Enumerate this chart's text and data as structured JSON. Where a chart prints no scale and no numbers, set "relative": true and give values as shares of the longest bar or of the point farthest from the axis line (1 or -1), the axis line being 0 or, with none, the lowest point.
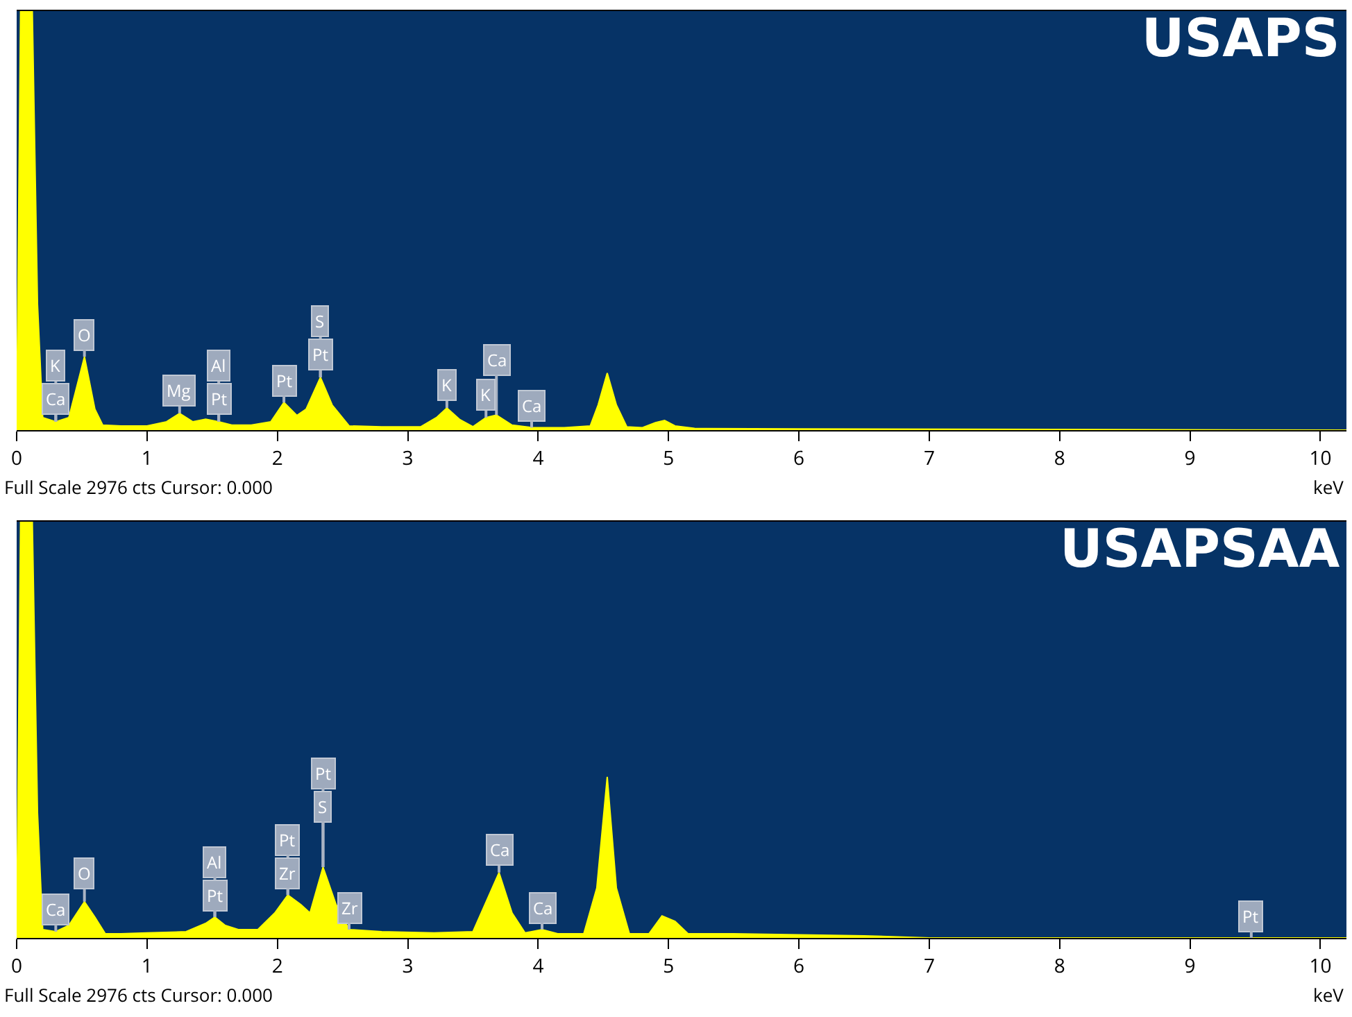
{
  "chart_data": [
    {
      "type": "area",
      "title": "USAPS",
      "xlabel": "keV",
      "relative": true,
      "color": "#ffff00",
      "xlim": [
        0,
        10.2
      ],
      "xticks": [
        0,
        1,
        2,
        3,
        4,
        5,
        6,
        7,
        8,
        9,
        10
      ],
      "x": [
        0,
        0.03,
        0.06,
        0.12,
        0.16,
        0.2,
        0.3,
        0.4,
        0.45,
        0.52,
        0.6,
        0.66,
        0.8,
        1.0,
        1.15,
        1.25,
        1.35,
        1.45,
        1.55,
        1.65,
        1.8,
        1.95,
        2.05,
        2.15,
        2.22,
        2.33,
        2.42,
        2.55,
        2.8,
        3.1,
        3.22,
        3.3,
        3.4,
        3.5,
        3.6,
        3.68,
        3.8,
        3.95,
        4.2,
        4.4,
        4.46,
        4.53,
        4.6,
        4.68,
        4.8,
        4.9,
        4.97,
        5.05,
        5.2,
        6,
        10.2
      ],
      "values": [
        0.01,
        1,
        1,
        1,
        0.3,
        0.03,
        0.02,
        0.03,
        0.09,
        0.175,
        0.05,
        0.012,
        0.01,
        0.01,
        0.02,
        0.04,
        0.02,
        0.026,
        0.02,
        0.012,
        0.012,
        0.02,
        0.066,
        0.035,
        0.05,
        0.126,
        0.06,
        0.01,
        0.008,
        0.008,
        0.03,
        0.053,
        0.025,
        0.008,
        0.03,
        0.036,
        0.012,
        0.006,
        0.006,
        0.01,
        0.06,
        0.136,
        0.06,
        0.008,
        0.006,
        0.018,
        0.023,
        0.01,
        0.004,
        0.003,
        0
      ],
      "annotations": [
        {
          "text": "Ca",
          "x": 0.3,
          "y": 0.02
        },
        {
          "text": "K",
          "x": 0.3,
          "y": 0.02
        },
        {
          "text": "O",
          "x": 0.52,
          "y": 0.175
        },
        {
          "text": "Mg",
          "x": 1.25,
          "y": 0.04
        },
        {
          "text": "Pt",
          "x": 1.55,
          "y": 0.02
        },
        {
          "text": "Al",
          "x": 1.55,
          "y": 0.02
        },
        {
          "text": "Pt",
          "x": 2.05,
          "y": 0.066
        },
        {
          "text": "Pt",
          "x": 2.33,
          "y": 0.126
        },
        {
          "text": "S",
          "x": 2.33,
          "y": 0.126
        },
        {
          "text": "K",
          "x": 3.3,
          "y": 0.053
        },
        {
          "text": "K",
          "x": 3.6,
          "y": 0.03
        },
        {
          "text": "Ca",
          "x": 3.68,
          "y": 0.036
        },
        {
          "text": "Ca",
          "x": 3.95,
          "y": 0.006
        },
        "Full Scale 2976 cts Cursor: 0.000"
      ]
    },
    {
      "type": "area",
      "title": "USAPSAA",
      "xlabel": "keV",
      "relative": true,
      "color": "#ffff00",
      "xlim": [
        0,
        10.2
      ],
      "xticks": [
        0,
        1,
        2,
        3,
        4,
        5,
        6,
        7,
        8,
        9,
        10
      ],
      "x": [
        0,
        0.03,
        0.06,
        0.12,
        0.16,
        0.2,
        0.3,
        0.4,
        0.52,
        0.6,
        0.68,
        0.8,
        1.0,
        1.3,
        1.45,
        1.52,
        1.6,
        1.7,
        1.85,
        1.98,
        2.08,
        2.18,
        2.25,
        2.35,
        2.45,
        2.55,
        2.8,
        3.2,
        3.5,
        3.62,
        3.7,
        3.8,
        3.9,
        4.03,
        4.15,
        4.35,
        4.45,
        4.53,
        4.6,
        4.7,
        4.85,
        4.95,
        5.05,
        5.15,
        5.5,
        6.5,
        7,
        9.47,
        10.2
      ],
      "values": [
        0.01,
        1,
        1,
        1,
        0.3,
        0.02,
        0.015,
        0.03,
        0.087,
        0.05,
        0.01,
        0.01,
        0.012,
        0.015,
        0.035,
        0.05,
        0.03,
        0.02,
        0.02,
        0.06,
        0.103,
        0.08,
        0.06,
        0.17,
        0.08,
        0.02,
        0.015,
        0.012,
        0.015,
        0.1,
        0.157,
        0.06,
        0.012,
        0.02,
        0.01,
        0.01,
        0.12,
        0.387,
        0.12,
        0.01,
        0.01,
        0.053,
        0.04,
        0.01,
        0.01,
        0.005,
        0,
        0,
        0
      ],
      "annotations": [
        {
          "text": "Ca",
          "x": 0.3,
          "y": 0.015
        },
        {
          "text": "O",
          "x": 0.52,
          "y": 0.087
        },
        {
          "text": "Pt",
          "x": 1.52,
          "y": 0.05
        },
        {
          "text": "Al",
          "x": 1.52,
          "y": 0.05
        },
        {
          "text": "Zr",
          "x": 2.08,
          "y": 0.103
        },
        {
          "text": "Pt",
          "x": 2.08,
          "y": 0.103
        },
        {
          "text": "S",
          "x": 2.35,
          "y": 0.17
        },
        {
          "text": "Pt",
          "x": 2.35,
          "y": 0.17
        },
        {
          "text": "Zr",
          "x": 2.55,
          "y": 0.02
        },
        {
          "text": "Ca",
          "x": 3.7,
          "y": 0.157
        },
        {
          "text": "Ca",
          "x": 4.03,
          "y": 0.02
        },
        {
          "text": "Pt",
          "x": 9.47,
          "y": 0
        },
        "Full Scale 2976 cts Cursor: 0.000"
      ]
    }
  ]
}
